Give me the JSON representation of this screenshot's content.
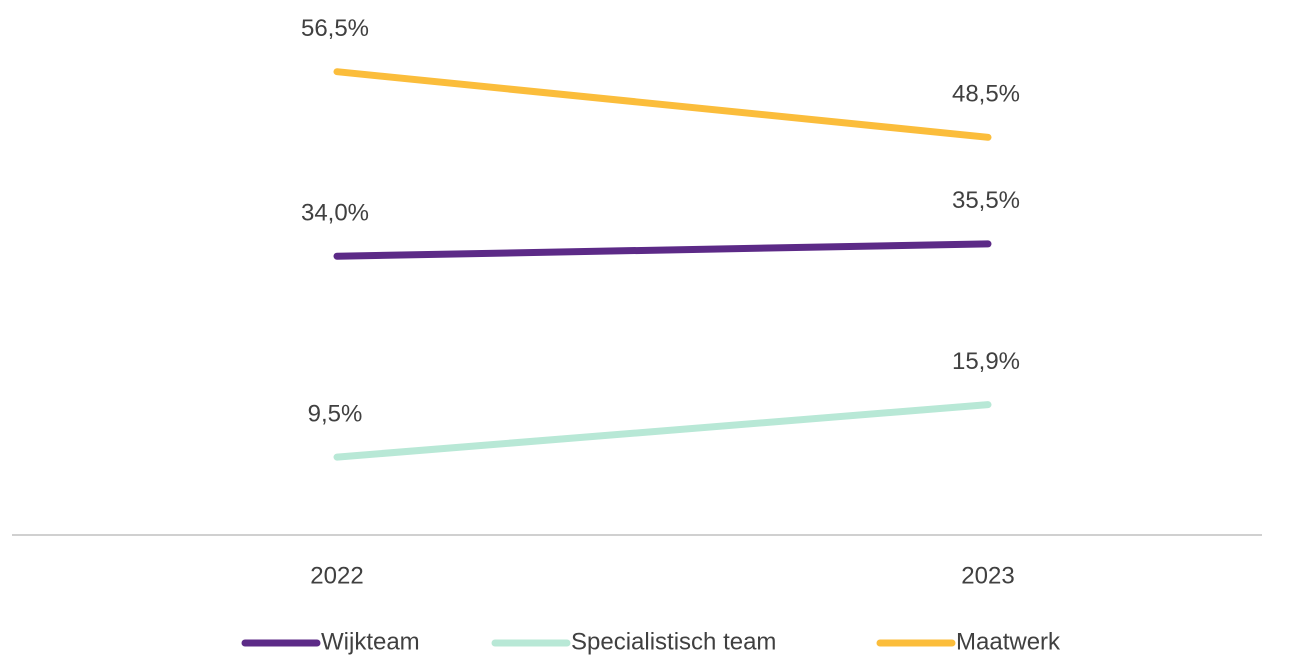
{
  "chart_data": {
    "type": "line",
    "categories": [
      "2022",
      "2023"
    ],
    "series": [
      {
        "name": "Wijkteam",
        "color": "#5c2a87",
        "values": [
          34.0,
          35.5
        ],
        "value_labels": [
          "34,0%",
          "35,5%"
        ]
      },
      {
        "name": "Specialistisch team",
        "color": "#b8e8d6",
        "values": [
          9.5,
          15.9
        ],
        "value_labels": [
          "9,5%",
          "15,9%"
        ]
      },
      {
        "name": "Maatwerk",
        "color": "#fbbd3b",
        "values": [
          56.5,
          48.5
        ],
        "value_labels": [
          "56,5%",
          "48,5%"
        ]
      }
    ],
    "ylim": [
      0,
      65
    ],
    "legend": "bottom"
  }
}
